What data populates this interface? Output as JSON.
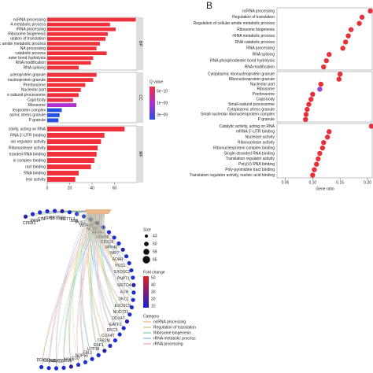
{
  "chart_data": [
    {
      "type": "hbar",
      "xlim": [
        0,
        80
      ],
      "xticks": [
        0,
        20,
        40,
        60
      ],
      "legend_title": "Q value",
      "legend_labels": [
        "5e−10",
        "1e−09",
        "2e−09"
      ],
      "legend_colors": [
        "#f0303a",
        "#b030d0",
        "#2850e0"
      ],
      "groups": [
        {
          "name": "BP",
          "categories": [
            "ncRNA processing",
            "A metabolic process",
            "rRNA processing",
            "Ribosome biogenesis",
            "ulation of translation",
            "ic amide metabolic process",
            "NA processing",
            "catabolic process",
            "ester bond hydrolysis",
            "RNA modification",
            "RNA splicing"
          ],
          "values": [
            79,
            56,
            61,
            54,
            52,
            47,
            44,
            53,
            41,
            39,
            28
          ],
          "colors": [
            "#f0303a",
            "#f0303a",
            "#f0303a",
            "#f0303a",
            "#f0303a",
            "#f0303a",
            "#f0303a",
            "#f0303a",
            "#f0303a",
            "#f0303a",
            "#f0303a"
          ]
        },
        {
          "name": "CC",
          "categories": [
            "ucleoprotein granule",
            "nucleoprotein granule",
            "Preribosome",
            "Nucleolar part",
            "e subunit processome",
            "Cajal body",
            "Ribosome",
            "leoprotein complex",
            "asmic stress granule",
            "P granule"
          ],
          "values": [
            44,
            41,
            34,
            30,
            28,
            23,
            26,
            13,
            11,
            10
          ],
          "colors": [
            "#f0303a",
            "#f0303a",
            "#f0303a",
            "#f0303a",
            "#f0303a",
            "#e8304a",
            "#b030d0",
            "#2850e0",
            "#2850e0",
            "#2850e0"
          ]
        },
        {
          "name": "MF",
          "categories": [
            "ctivity, acting on RNA",
            "RNA 3'-UTR binding",
            "ion regulator activity",
            "Ribonuclease activity",
            "tranded RNA binding",
            "in complex binding",
            "ract binding",
            "RNA binding",
            "lear activity"
          ],
          "values": [
            69,
            51,
            48,
            45,
            44,
            42,
            39,
            28,
            25
          ],
          "colors": [
            "#f0303a",
            "#f0303a",
            "#f0303a",
            "#f0303a",
            "#f0303a",
            "#f0303a",
            "#f0303a",
            "#f0303a",
            "#f0303a"
          ]
        }
      ]
    },
    {
      "type": "dot",
      "panel_label": "B",
      "x_label": "Gene ratio",
      "xlim": [
        0.035,
        0.21
      ],
      "xticks": [
        0.05,
        {
          "value": 0.1,
          "label": "0.10"
        },
        0.15,
        {
          "value": 0.2,
          "label": "0.20"
        }
      ],
      "groups": [
        {
          "categories": [
            "ncRNA processing",
            "Regulation of translation",
            "Regulation of cellular amide metabolic process",
            "Ribosome biogenesis",
            "rRNA metabolic process",
            "RNA catabolic process",
            "RNA processing",
            "RNA splicing",
            "RNA phosphodiester bond hydrolysis",
            "RNA modification"
          ],
          "values": [
            0.205,
            0.19,
            0.185,
            0.17,
            0.165,
            0.16,
            0.155,
            0.13,
            0.125,
            0.12
          ],
          "colors": [
            "#e8303a",
            "#e8303a",
            "#e8303a",
            "#e8303a",
            "#e8303a",
            "#e8303a",
            "#e8303a",
            "#e8303a",
            "#e8303a",
            "#e8303a"
          ]
        },
        {
          "categories": [
            "Cytoplasmic ribonucleoprotein granule",
            "Ribonucleoprotein granule",
            "Nucleolar part",
            "Ribosome",
            "Preribosome",
            "Cajal body",
            "Small-subunit processome",
            "Cytoplasmic stress granule",
            "Small nucleolar ribonucleoprotein complex",
            "P granule"
          ],
          "values": [
            0.15,
            0.148,
            0.115,
            0.113,
            0.1,
            0.097,
            0.093,
            0.09,
            0.088,
            0.087
          ],
          "colors": [
            "#e8303a",
            "#e8303a",
            "#e8303a",
            "#9a40d8",
            "#e8303a",
            "#e8303a",
            "#e8303a",
            "#e8303a",
            "#e8303a",
            "#e8303a"
          ]
        },
        {
          "categories": [
            "Catalytic activity, acting on RNA",
            "mRNA 3'-UTR binding",
            "Nuclease activity",
            "Ribonuclease activity",
            "Ribonucleoprotein complex binding",
            "Single-stranded RNA binding",
            "Translation regulator activity",
            "Poly(U) RNA binding",
            "Poly-pyrimidine tract binding",
            "Translation regulator activity, nucleic acid binding"
          ],
          "values": [
            0.207,
            0.13,
            0.127,
            0.12,
            0.118,
            0.113,
            0.11,
            0.107,
            0.103,
            0.1
          ],
          "colors": [
            "#e8303a",
            "#e8303a",
            "#e8303a",
            "#e8303a",
            "#e8303a",
            "#e8303a",
            "#e8303a",
            "#e8303a",
            "#e8303a",
            "#e8303a"
          ]
        }
      ]
    },
    {
      "type": "network",
      "genes": [
        "CPEB1",
        "PAN4",
        "CTIF",
        "UTP15",
        "RRS1",
        "TSR1",
        "METTL1",
        "SSB",
        "PUS7",
        "WDR43",
        "NOP2",
        "RRP9",
        "NOP58",
        "DDX18",
        "RPP40",
        "NIP7",
        "ADAR",
        "PUS1",
        "EXOSC2",
        "PNPT1",
        "MRTO4",
        "AUH",
        "DKC1",
        "EXOSC9",
        "NUDT21",
        "DDX47",
        "EATF1",
        "DKC3",
        "COX4T",
        "TFB2M",
        "ESF1",
        "UTP18",
        "FBL1",
        "NOP56",
        "C1D",
        "NOL6",
        "EXOSC10",
        "NOLC1",
        "CSDE1",
        "DDX10"
      ],
      "size_title": "Size",
      "size_ticks": [
        43,
        50,
        58,
        65
      ],
      "fold_title": "Fold change",
      "fold_ticks": [
        50,
        40,
        30,
        20,
        10
      ],
      "category_title": "Category",
      "categories": [
        "ncRNA processing",
        "Regulation of translation",
        "Ribosome biogenesis",
        "rRNA metabolic process",
        "rRNA processing"
      ],
      "category_colors": [
        "#e6a95e",
        "#b8b85a",
        "#5ebfa0",
        "#6aaad8",
        "#e88ac0"
      ]
    }
  ]
}
